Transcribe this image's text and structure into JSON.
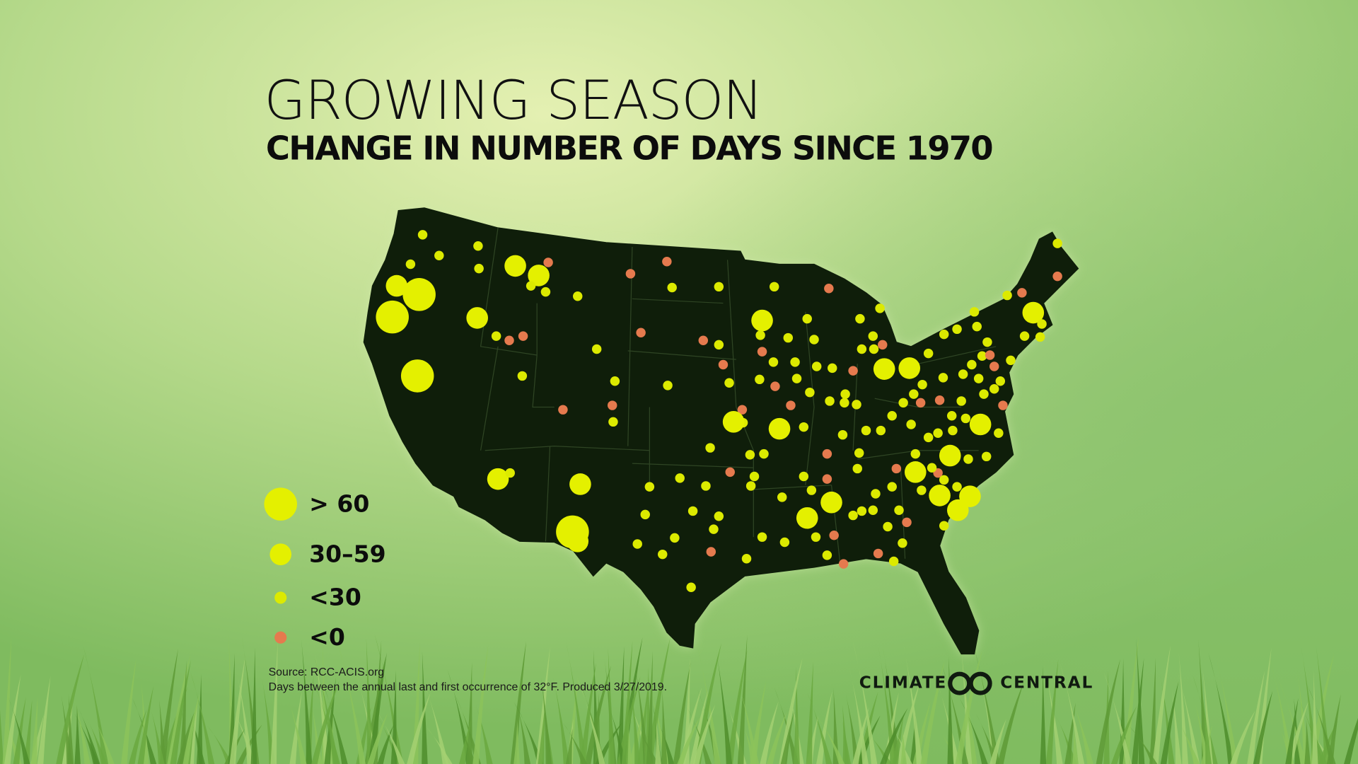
{
  "header": {
    "title": "GROWING SEASON",
    "subtitle": "CHANGE IN NUMBER OF DAYS SINCE 1970"
  },
  "legend": [
    {
      "label": "> 60",
      "color": "#e4f000"
    },
    {
      "label": "30–59",
      "color": "#e4f000"
    },
    {
      "label": "<30",
      "color": "#dcea00"
    },
    {
      "label": "<0",
      "color": "#e57a4e"
    }
  ],
  "footer": {
    "source": "Source: RCC-ACIS.org",
    "note": "Days between the annual last and first occurrence of 32°F. Produced 3/27/2019."
  },
  "logo": {
    "left": "CLIMATE",
    "right": "CENTRAL"
  }
}
